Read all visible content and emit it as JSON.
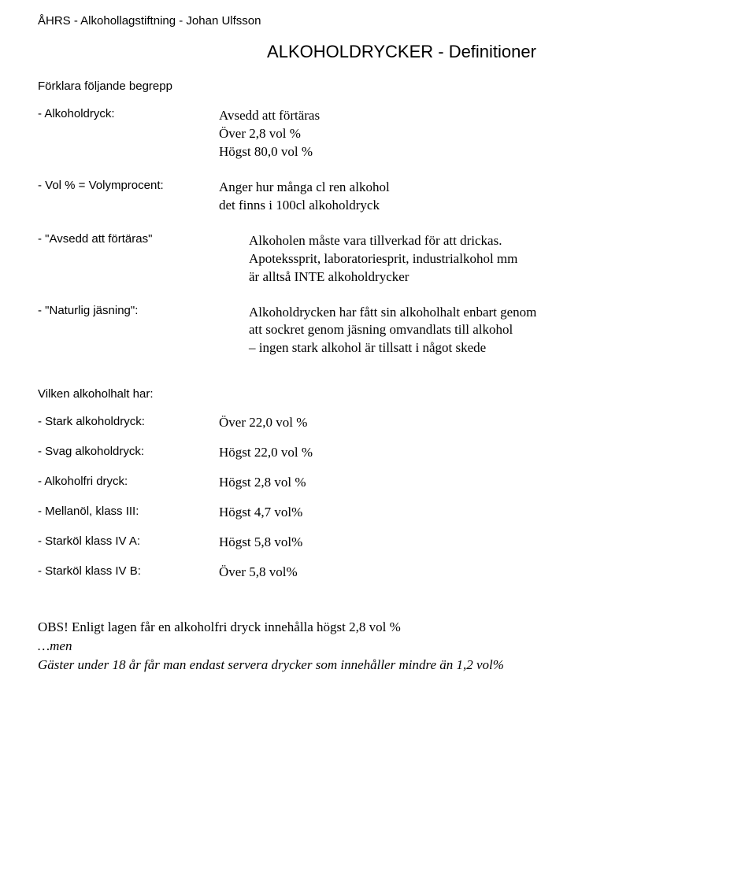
{
  "header": "ÅHRS - Alkohollagstiftning - Johan Ulfsson",
  "title": "ALKOHOLDRYCKER - Definitioner",
  "subhead": "Förklara följande begrepp",
  "defs": [
    {
      "term": "- Alkoholdryck:",
      "body_lines": [
        "Avsedd att förtäras",
        "Över 2,8 vol %",
        "Högst 80,0 vol %"
      ],
      "indent": false
    },
    {
      "term": "- Vol % = Volymprocent:",
      "body_lines": [
        "Anger hur många cl  ren alkohol",
        "det finns i 100cl alkoholdryck"
      ],
      "indent": false
    },
    {
      "term": "- \"Avsedd att förtäras\"",
      "body_lines": [
        "Alkoholen måste vara tillverkad för att drickas.",
        "Apotekssprit, laboratoriesprit, industrialkohol mm",
        "är alltså INTE alkoholdrycker"
      ],
      "indent": true
    },
    {
      "term": "- \"Naturlig jäsning\":",
      "body_lines": [
        "Alkoholdrycken har fått sin alkoholhalt enbart genom",
        "att sockret genom jäsning omvandlats till alkohol",
        "– ingen stark alkohol är tillsatt i något skede"
      ],
      "indent": true
    }
  ],
  "section2_head": "Vilken alkoholhalt har:",
  "halts": [
    {
      "term": "- Stark alkoholdryck:",
      "val": "Över   22,0 vol %"
    },
    {
      "term": "- Svag alkoholdryck:",
      "val": "Högst  22,0 vol %"
    },
    {
      "term": "- Alkoholfri dryck:",
      "val": "Högst  2,8 vol %"
    },
    {
      "term": "- Mellanöl, klass III:",
      "val": "Högst  4,7 vol%"
    },
    {
      "term": "- Starköl klass IV A:",
      "val": "Högst  5,8 vol%"
    },
    {
      "term": "- Starköl klass IV B:",
      "val": "Över   5,8 vol%"
    }
  ],
  "foot": {
    "line1": "OBS! Enligt lagen får en alkoholfri dryck innehålla högst 2,8 vol %",
    "line2": "…men",
    "line3": "Gäster under 18 år får man endast servera drycker som innehåller mindre än 1,2 vol%"
  }
}
